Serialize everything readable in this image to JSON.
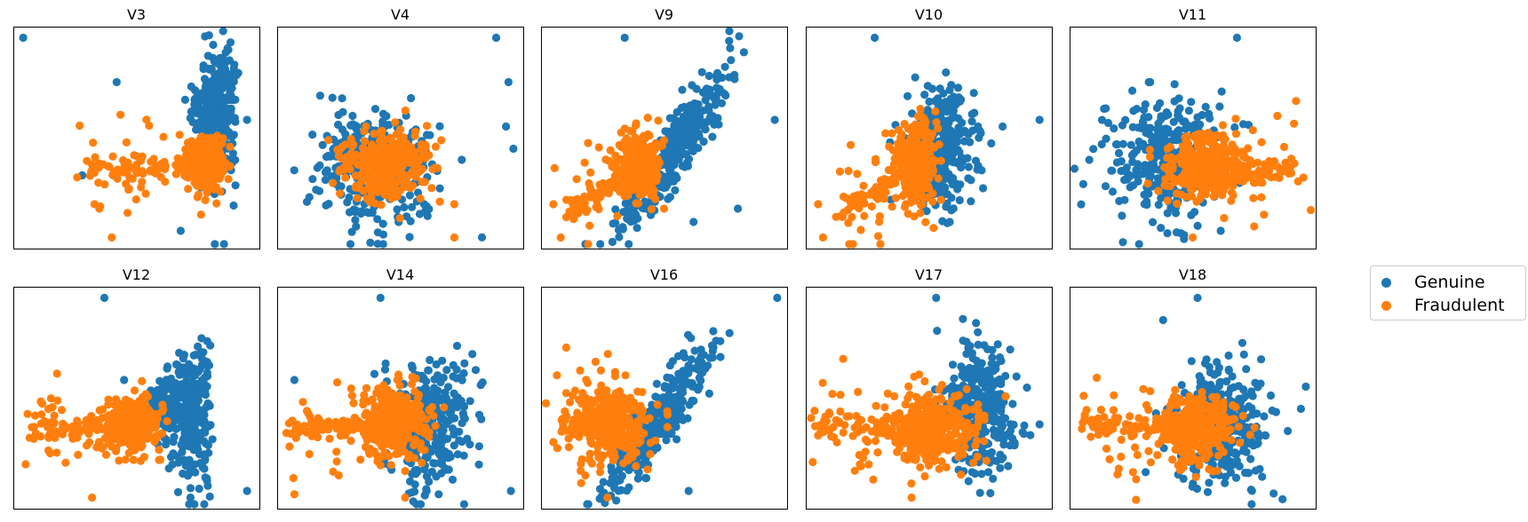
{
  "colors": {
    "genuine": "#1f77b4",
    "fraudulent": "#ff7f0e",
    "frame": "#000000"
  },
  "legend": {
    "placement": "right",
    "items": [
      {
        "label": "Genuine",
        "color": "#1f77b4"
      },
      {
        "label": "Fraudulent",
        "color": "#ff7f0e"
      }
    ]
  },
  "chart_data": [
    {
      "type": "scatter",
      "title": "V3",
      "axes_visible": false,
      "series": [
        {
          "name": "Genuine",
          "shape": "wedge-right",
          "center": [
            0.82,
            0.62
          ],
          "spread": [
            0.1,
            0.28
          ],
          "outliers": [
            [
              0.04,
              0.95
            ],
            [
              0.95,
              0.58
            ],
            [
              0.42,
              0.75
            ],
            [
              0.28,
              0.33
            ],
            [
              0.68,
              0.08
            ]
          ]
        },
        {
          "name": "Fraudulent",
          "shape": "tail-left",
          "center": [
            0.78,
            0.38
          ],
          "spread": [
            0.08,
            0.14
          ],
          "tail_to": [
            0.3,
            0.34
          ],
          "outliers": [
            [
              0.4,
              0.05
            ],
            [
              0.35,
              0.18
            ],
            [
              0.47,
              0.27
            ],
            [
              0.33,
              0.2
            ]
          ]
        }
      ]
    },
    {
      "type": "scatter",
      "title": "V4",
      "axes_visible": false,
      "series": [
        {
          "name": "Genuine",
          "shape": "blob",
          "center": [
            0.4,
            0.38
          ],
          "spread": [
            0.3,
            0.32
          ],
          "outliers": [
            [
              0.89,
              0.95
            ],
            [
              0.94,
              0.75
            ],
            [
              0.93,
              0.55
            ],
            [
              0.96,
              0.45
            ],
            [
              0.75,
              0.4
            ]
          ]
        },
        {
          "name": "Fraudulent",
          "shape": "blob",
          "center": [
            0.45,
            0.38
          ],
          "spread": [
            0.2,
            0.18
          ],
          "outliers": [
            [
              0.72,
              0.05
            ],
            [
              0.72,
              0.2
            ],
            [
              0.6,
              0.3
            ]
          ]
        }
      ]
    },
    {
      "type": "scatter",
      "title": "V9",
      "axes_visible": false,
      "series": [
        {
          "name": "Genuine",
          "shape": "slanted",
          "center": [
            0.55,
            0.45
          ],
          "spread": [
            0.2,
            0.3
          ],
          "outliers": [
            [
              0.34,
              0.95
            ],
            [
              0.95,
              0.58
            ],
            [
              0.62,
              0.12
            ],
            [
              0.8,
              0.18
            ]
          ]
        },
        {
          "name": "Fraudulent",
          "shape": "tail-left",
          "center": [
            0.4,
            0.38
          ],
          "spread": [
            0.1,
            0.18
          ],
          "tail_to": [
            0.1,
            0.15
          ],
          "outliers": [
            [
              0.05,
              0.2
            ],
            [
              0.08,
              0.05
            ],
            [
              0.5,
              0.18
            ]
          ]
        }
      ]
    },
    {
      "type": "scatter",
      "title": "V10",
      "axes_visible": false,
      "series": [
        {
          "name": "Genuine",
          "shape": "blob",
          "center": [
            0.55,
            0.45
          ],
          "spread": [
            0.16,
            0.32
          ],
          "outliers": [
            [
              0.28,
              0.95
            ],
            [
              0.95,
              0.58
            ],
            [
              0.8,
              0.55
            ]
          ]
        },
        {
          "name": "Fraudulent",
          "shape": "tail-left",
          "center": [
            0.45,
            0.38
          ],
          "spread": [
            0.1,
            0.2
          ],
          "tail_to": [
            0.12,
            0.15
          ],
          "outliers": [
            [
              0.05,
              0.2
            ],
            [
              0.07,
              0.05
            ],
            [
              0.55,
              0.22
            ]
          ]
        }
      ]
    },
    {
      "type": "scatter",
      "title": "V11",
      "axes_visible": false,
      "series": [
        {
          "name": "Genuine",
          "shape": "blob",
          "center": [
            0.4,
            0.4
          ],
          "spread": [
            0.26,
            0.32
          ],
          "outliers": [
            [
              0.68,
              0.95
            ],
            [
              0.08,
              0.4
            ]
          ]
        },
        {
          "name": "Fraudulent",
          "shape": "tail-right",
          "center": [
            0.55,
            0.38
          ],
          "spread": [
            0.2,
            0.16
          ],
          "tail_to": [
            0.92,
            0.35
          ],
          "outliers": [
            [
              0.95,
              0.32
            ],
            [
              0.75,
              0.1
            ],
            [
              0.5,
              0.05
            ]
          ]
        }
      ]
    },
    {
      "type": "scatter",
      "title": "V12",
      "axes_visible": false,
      "series": [
        {
          "name": "Genuine",
          "shape": "wedge-right",
          "center": [
            0.7,
            0.45
          ],
          "spread": [
            0.14,
            0.32
          ],
          "outliers": [
            [
              0.37,
              0.95
            ],
            [
              0.95,
              0.08
            ],
            [
              0.45,
              0.58
            ],
            [
              0.72,
              0.05
            ]
          ]
        },
        {
          "name": "Fraudulent",
          "shape": "tail-left",
          "center": [
            0.48,
            0.38
          ],
          "spread": [
            0.14,
            0.14
          ],
          "tail_to": [
            0.08,
            0.36
          ],
          "outliers": [
            [
              0.05,
              0.2
            ],
            [
              0.32,
              0.05
            ],
            [
              0.15,
              0.25
            ]
          ]
        }
      ]
    },
    {
      "type": "scatter",
      "title": "V14",
      "axes_visible": false,
      "series": [
        {
          "name": "Genuine",
          "shape": "blob",
          "center": [
            0.62,
            0.4
          ],
          "spread": [
            0.22,
            0.32
          ],
          "outliers": [
            [
              0.42,
              0.95
            ],
            [
              0.07,
              0.58
            ],
            [
              0.95,
              0.08
            ],
            [
              0.6,
              0.06
            ]
          ]
        },
        {
          "name": "Fraudulent",
          "shape": "tail-left",
          "center": [
            0.48,
            0.38
          ],
          "spread": [
            0.16,
            0.18
          ],
          "tail_to": [
            0.06,
            0.36
          ],
          "outliers": [
            [
              0.05,
              0.28
            ],
            [
              0.52,
              0.05
            ],
            [
              0.25,
              0.15
            ]
          ]
        }
      ]
    },
    {
      "type": "scatter",
      "title": "V16",
      "axes_visible": false,
      "series": [
        {
          "name": "Genuine",
          "shape": "slanted",
          "center": [
            0.48,
            0.4
          ],
          "spread": [
            0.2,
            0.3
          ],
          "outliers": [
            [
              0.96,
              0.95
            ],
            [
              0.6,
              0.08
            ],
            [
              0.7,
              0.8
            ]
          ]
        },
        {
          "name": "Fraudulent",
          "shape": "tail-left",
          "center": [
            0.3,
            0.38
          ],
          "spread": [
            0.16,
            0.2
          ],
          "tail_to": [
            0.08,
            0.4
          ],
          "outliers": [
            [
              0.05,
              0.3
            ],
            [
              0.27,
              0.05
            ],
            [
              0.18,
              0.15
            ]
          ]
        }
      ]
    },
    {
      "type": "scatter",
      "title": "V17",
      "axes_visible": false,
      "series": [
        {
          "name": "Genuine",
          "shape": "blob",
          "center": [
            0.7,
            0.45
          ],
          "spread": [
            0.16,
            0.34
          ],
          "outliers": [
            [
              0.53,
              0.95
            ],
            [
              0.95,
              0.38
            ],
            [
              0.75,
              0.07
            ]
          ]
        },
        {
          "name": "Fraudulent",
          "shape": "tail-left",
          "center": [
            0.52,
            0.36
          ],
          "spread": [
            0.22,
            0.18
          ],
          "tail_to": [
            0.05,
            0.38
          ],
          "outliers": [
            [
              0.05,
              0.33
            ],
            [
              0.43,
              0.05
            ],
            [
              0.22,
              0.2
            ]
          ]
        }
      ]
    },
    {
      "type": "scatter",
      "title": "V18",
      "axes_visible": false,
      "series": [
        {
          "name": "Genuine",
          "shape": "blob",
          "center": [
            0.62,
            0.38
          ],
          "spread": [
            0.24,
            0.32
          ],
          "outliers": [
            [
              0.52,
              0.95
            ],
            [
              0.96,
              0.55
            ],
            [
              0.94,
              0.45
            ],
            [
              0.38,
              0.85
            ]
          ]
        },
        {
          "name": "Fraudulent",
          "shape": "tail-left",
          "center": [
            0.52,
            0.36
          ],
          "spread": [
            0.18,
            0.18
          ],
          "tail_to": [
            0.05,
            0.38
          ],
          "outliers": [
            [
              0.05,
              0.36
            ],
            [
              0.27,
              0.04
            ],
            [
              0.2,
              0.18
            ]
          ]
        }
      ]
    }
  ]
}
